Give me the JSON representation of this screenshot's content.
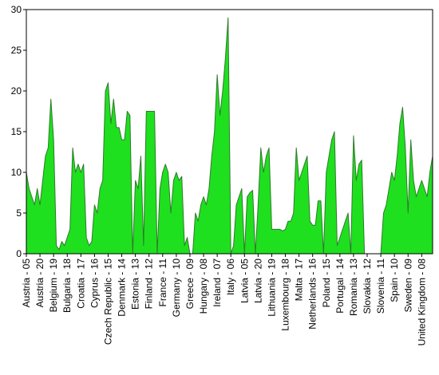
{
  "chart_data": {
    "type": "area",
    "color": "#1fe01f",
    "line_color": "#2f7a2a",
    "ylim": [
      0,
      30
    ],
    "yticks": [
      0,
      5,
      10,
      15,
      20,
      25,
      30
    ],
    "categories": [
      "Austria - 05",
      null,
      null,
      null,
      null,
      "Austria - 20",
      null,
      null,
      null,
      null,
      "Belgium - 19",
      null,
      null,
      null,
      null,
      "Bulgaria - 18",
      null,
      null,
      null,
      null,
      "Croatia - 17",
      null,
      null,
      null,
      null,
      "Cyprus - 16",
      null,
      null,
      null,
      null,
      "Czech Republic - 15",
      null,
      null,
      null,
      null,
      "Denmark - 14",
      null,
      null,
      null,
      null,
      "Estonia - 13",
      null,
      null,
      null,
      null,
      "Finland - 12",
      null,
      null,
      null,
      null,
      "France - 11",
      null,
      null,
      null,
      null,
      "Germany - 10",
      null,
      null,
      null,
      null,
      "Greece - 09",
      null,
      null,
      null,
      null,
      "Hungary - 08",
      null,
      null,
      null,
      null,
      "Ireland - 07",
      null,
      null,
      null,
      null,
      "Italy - 06",
      null,
      null,
      null,
      null,
      "Latvia - 05",
      null,
      null,
      null,
      null,
      "Latvia - 20",
      null,
      null,
      null,
      null,
      "Lithuania - 19",
      null,
      null,
      null,
      null,
      "Luxembourg - 18",
      null,
      null,
      null,
      null,
      "Malta - 17",
      null,
      null,
      null,
      null,
      "Netherlands - 16",
      null,
      null,
      null,
      null,
      "Poland - 15",
      null,
      null,
      null,
      null,
      "Portugal - 14",
      null,
      null,
      null,
      null,
      "Romania - 13",
      null,
      null,
      null,
      null,
      "Slovakia - 12",
      null,
      null,
      null,
      null,
      "Slovenia - 11",
      null,
      null,
      null,
      null,
      "Spain - 10",
      null,
      null,
      null,
      null,
      "Sweden - 09",
      null,
      null,
      null,
      null,
      "United Kingdom - 08",
      null,
      null,
      null,
      null
    ],
    "values": [
      10,
      8,
      7,
      6,
      8,
      6,
      9,
      12,
      13,
      19,
      14,
      1,
      0.5,
      1.5,
      1,
      2,
      3,
      13,
      10,
      11,
      10,
      11,
      2,
      1,
      1.5,
      6,
      5,
      8,
      9,
      20,
      21,
      16,
      19,
      15.5,
      15.5,
      14,
      14,
      17.5,
      17,
      0,
      9,
      8,
      12,
      1,
      17.5,
      17.5,
      17.5,
      17.5,
      0,
      8,
      10,
      11,
      10,
      5,
      9,
      10,
      9,
      9.5,
      1,
      2,
      0,
      0,
      5,
      4,
      6,
      7,
      6,
      8,
      12,
      15,
      22,
      17,
      20,
      24,
      29,
      0,
      1,
      6,
      7,
      8,
      0,
      7,
      7.5,
      7.8,
      0,
      6,
      13,
      10,
      12,
      13,
      3,
      3,
      3,
      3,
      2.8,
      3,
      4,
      4,
      5,
      13,
      9,
      10,
      11,
      12,
      4,
      3.5,
      3.5,
      6.5,
      6.5,
      0,
      10,
      12,
      14,
      15,
      1,
      2,
      3,
      4,
      5,
      0,
      14.5,
      9,
      11,
      11.5,
      0,
      0,
      0,
      0,
      0,
      0,
      0,
      5,
      6,
      8,
      10,
      9,
      12,
      16,
      18,
      13,
      5,
      14,
      9,
      7,
      8,
      9,
      8,
      7,
      10,
      12
    ]
  }
}
